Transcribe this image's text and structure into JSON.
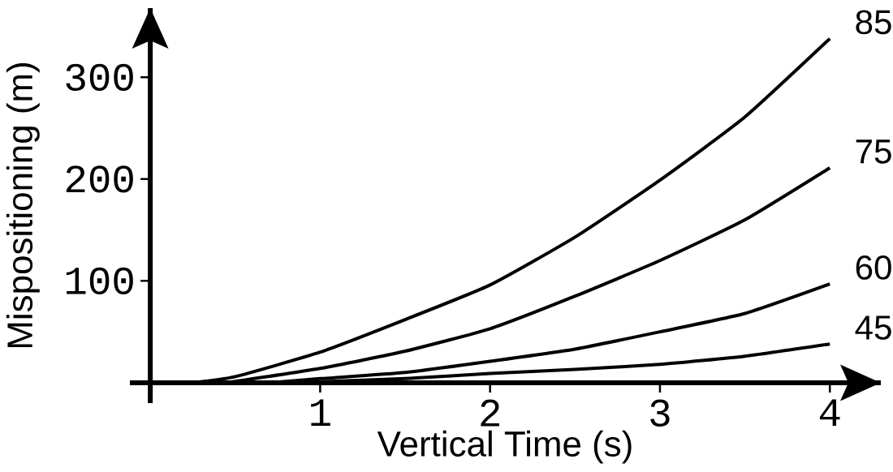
{
  "chart_data": {
    "type": "line",
    "xlabel": "Vertical Time (s)",
    "ylabel": "Mispositioning (m)",
    "xlim": [
      -0.12,
      4.3
    ],
    "ylim": [
      -20,
      368
    ],
    "xticks": [
      1,
      2,
      3,
      4
    ],
    "yticks": [
      100,
      200,
      300
    ],
    "series": [
      {
        "name": "85",
        "color": "#000000",
        "x": [
          0.25,
          0.5,
          1,
          1.5,
          2,
          2.5,
          3,
          3.5,
          4
        ],
        "values": [
          0,
          6,
          30,
          62,
          96,
          143,
          199,
          261,
          338
        ]
      },
      {
        "name": "75",
        "color": "#000000",
        "x": [
          0.45,
          1,
          1.5,
          2,
          2.5,
          3,
          3.5,
          4
        ],
        "values": [
          0,
          14,
          31,
          53,
          85,
          120,
          160,
          211
        ]
      },
      {
        "name": "60",
        "color": "#000000",
        "x": [
          0.7,
          1,
          1.5,
          2,
          2.5,
          3,
          3.5,
          4
        ],
        "values": [
          0,
          4,
          10,
          21,
          33,
          50,
          68,
          97
        ]
      },
      {
        "name": "45",
        "color": "#000000",
        "x": [
          0.8,
          1,
          1.5,
          2,
          2.5,
          3,
          3.5,
          4
        ],
        "values": [
          0,
          1,
          4,
          9,
          13,
          18,
          26,
          38
        ]
      }
    ]
  }
}
